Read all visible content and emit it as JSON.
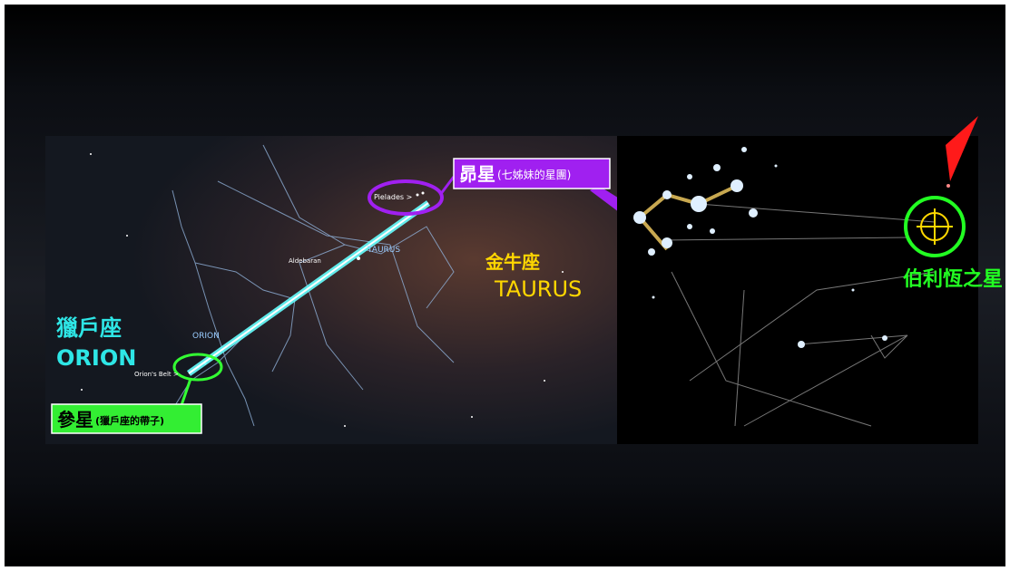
{
  "left_panel": {
    "orion_zh": "獵戶座",
    "orion_en": "ORION",
    "taurus_zh": "金牛座",
    "taurus_en": "TAURUS",
    "small_labels": {
      "pleiades": "Pielades >",
      "aldebaran": "Aldebaran",
      "taurus": "TAURUS",
      "orion": "ORION",
      "belt": "Orion's Belt >"
    }
  },
  "callouts": {
    "pleiades_zh": "昴星",
    "pleiades_note": "(七姊妹的星團)",
    "belt_zh": "參星",
    "belt_note": "(獵戶座的帶子)"
  },
  "right_panel": {
    "star_label": "伯利恆之星"
  }
}
